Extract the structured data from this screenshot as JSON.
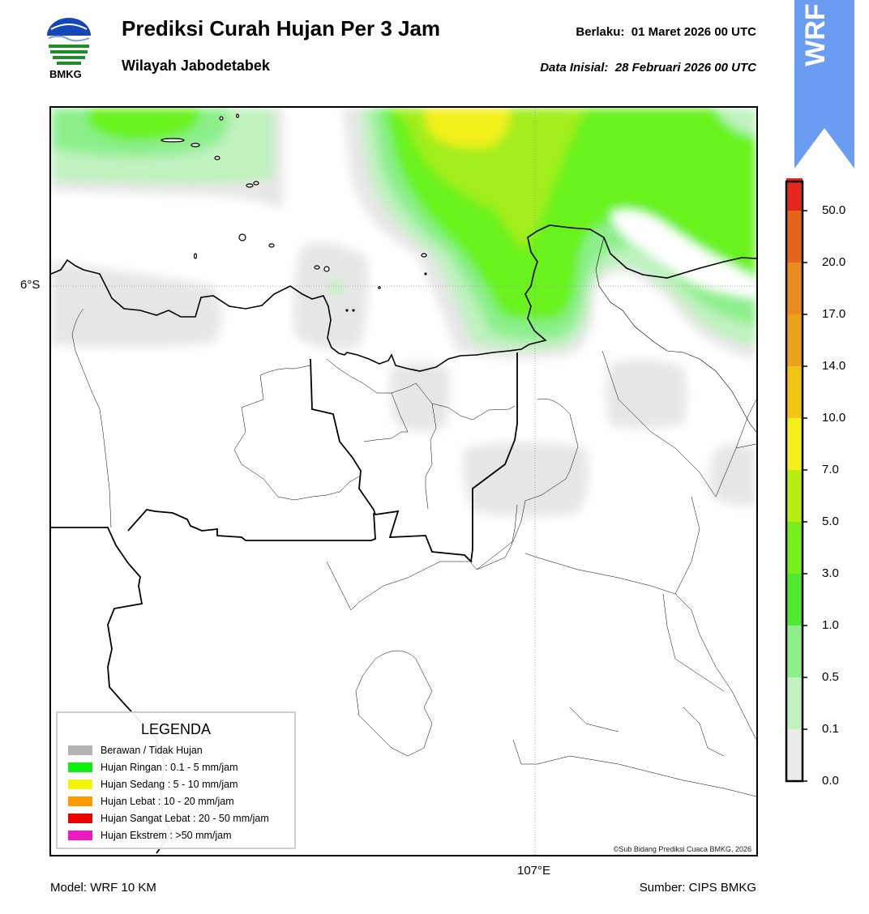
{
  "header": {
    "logo_label": "BMKG",
    "title": "Prediksi Curah Hujan Per 3 Jam",
    "subtitle": "Wilayah Jabodetabek",
    "valid_label": "Berlaku:",
    "valid_time": "01 Maret 2026 00 UTC",
    "init_label": "Data Inisial:",
    "init_time": "28 Februari 2026 00 UTC",
    "model_badge": "WRF"
  },
  "map": {
    "lat_label": "6°S",
    "lon_label": "107°E",
    "copyright": "©Sub Bidang Prediksi Cuaca BMKG, 2026"
  },
  "legend": {
    "title": "LEGENDA",
    "items": [
      {
        "label": "Berawan / Tidak Hujan",
        "color": "#b4b4b4"
      },
      {
        "label": "Hujan Ringan : 0.1 - 5 mm/jam",
        "color": "#0df20d"
      },
      {
        "label": "Hujan Sedang : 5 - 10 mm/jam",
        "color": "#f5f50a"
      },
      {
        "label": "Hujan Lebat : 10 - 20 mm/jam",
        "color": "#ff9900"
      },
      {
        "label": "Hujan Sangat Lebat : 20 - 50 mm/jam",
        "color": "#ee0000"
      },
      {
        "label": "Hujan Ekstrem : >50 mm/jam",
        "color": "#ee19c0"
      }
    ]
  },
  "colorbar": {
    "ticks": [
      "0.0",
      "0.1",
      "0.5",
      "1.0",
      "3.0",
      "5.0",
      "7.0",
      "10.0",
      "14.0",
      "17.0",
      "20.0",
      "50.0"
    ],
    "colors": [
      "#ebebeb",
      "#c2f2c2",
      "#8cef8c",
      "#50e830",
      "#78ef1c",
      "#b8ee14",
      "#f4f01a",
      "#f1c415",
      "#eba31b",
      "#ea8a1f",
      "#e4641c",
      "#e4281b",
      "#e41ac0"
    ]
  },
  "footer": {
    "model": "Model: WRF 10 KM",
    "source": "Sumber: CIPS BMKG"
  }
}
